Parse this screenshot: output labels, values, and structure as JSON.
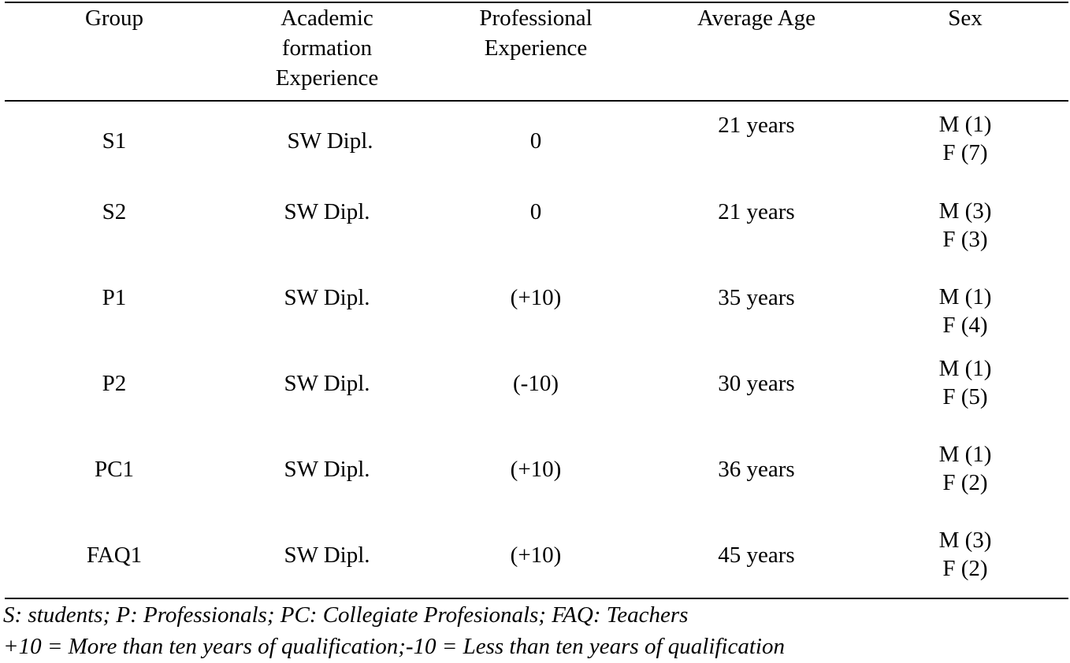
{
  "table": {
    "headers": {
      "group": "Group",
      "academic": [
        "Academic",
        "formation",
        "Experience"
      ],
      "professional": [
        "Professional",
        "Experience"
      ],
      "age": "Average Age",
      "sex": "Sex"
    },
    "rows": [
      {
        "group": "S1",
        "academic": "SW Dipl.",
        "professional": "0",
        "age": "21 years",
        "sex_m": "M (1)",
        "sex_f": "F (7)"
      },
      {
        "group": "S2",
        "academic": "SW Dipl.",
        "professional": "0",
        "age": "21 years",
        "sex_m": "M (3)",
        "sex_f": "F (3)"
      },
      {
        "group": "P1",
        "academic": "SW Dipl.",
        "professional": "(+10)",
        "age": "35 years",
        "sex_m": "M (1)",
        "sex_f": "F (4)"
      },
      {
        "group": "P2",
        "academic": "SW Dipl.",
        "professional": "(-10)",
        "age": "30 years",
        "sex_m": "M (1)",
        "sex_f": "F (5)"
      },
      {
        "group": "PC1",
        "academic": "SW Dipl.",
        "professional": "(+10)",
        "age": "36 years",
        "sex_m": "M (1)",
        "sex_f": "F (2)"
      },
      {
        "group": "FAQ1",
        "academic": "SW Dipl.",
        "professional": "(+10)",
        "age": "45 years",
        "sex_m": "M (3)",
        "sex_f": "F (2)"
      }
    ]
  },
  "footnotes": {
    "line1": "S: students; P: Professionals; PC: Collegiate Profesionals; FAQ:  Teachers",
    "line2": "+10 = More than ten years of qualification;-10 = Less than ten years of qualification"
  }
}
